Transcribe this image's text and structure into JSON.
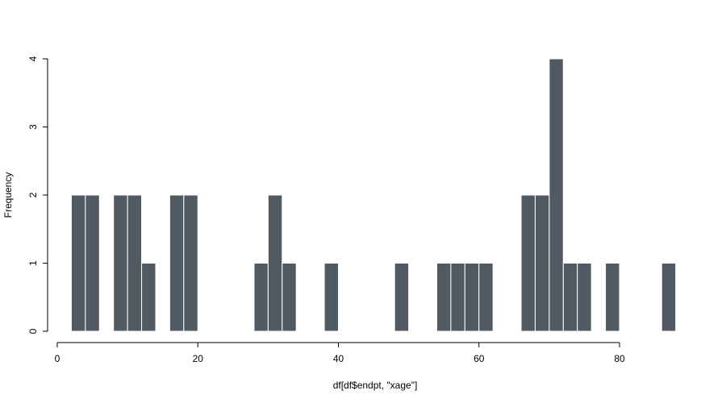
{
  "chart_data": {
    "type": "bar",
    "title": "",
    "xlabel": "df[df$endpt, \"xage\"]",
    "ylabel": "Frequency",
    "xlim": [
      0,
      80
    ],
    "ylim": [
      0,
      4
    ],
    "x_ticks": [
      "0",
      "20",
      "40",
      "60",
      "80"
    ],
    "y_ticks": [
      "0",
      "1",
      "2",
      "3",
      "4"
    ],
    "bin_width": 2,
    "bins": [
      {
        "start": 2,
        "end": 4,
        "count": 2
      },
      {
        "start": 4,
        "end": 6,
        "count": 2
      },
      {
        "start": 8,
        "end": 10,
        "count": 2
      },
      {
        "start": 10,
        "end": 12,
        "count": 2
      },
      {
        "start": 12,
        "end": 14,
        "count": 1
      },
      {
        "start": 16,
        "end": 18,
        "count": 2
      },
      {
        "start": 18,
        "end": 20,
        "count": 2
      },
      {
        "start": 28,
        "end": 30,
        "count": 1
      },
      {
        "start": 30,
        "end": 32,
        "count": 2
      },
      {
        "start": 32,
        "end": 34,
        "count": 1
      },
      {
        "start": 38,
        "end": 40,
        "count": 1
      },
      {
        "start": 48,
        "end": 50,
        "count": 1
      },
      {
        "start": 54,
        "end": 56,
        "count": 1
      },
      {
        "start": 56,
        "end": 58,
        "count": 1
      },
      {
        "start": 58,
        "end": 60,
        "count": 1
      },
      {
        "start": 60,
        "end": 62,
        "count": 1
      },
      {
        "start": 66,
        "end": 68,
        "count": 2
      },
      {
        "start": 68,
        "end": 70,
        "count": 2
      },
      {
        "start": 70,
        "end": 72,
        "count": 4
      },
      {
        "start": 72,
        "end": 74,
        "count": 1
      },
      {
        "start": 74,
        "end": 76,
        "count": 1
      },
      {
        "start": 78,
        "end": 80,
        "count": 1
      },
      {
        "start": 86,
        "end": 88,
        "count": 1
      }
    ],
    "bar_color": "#515a63",
    "bar_border_color": "#ffffff",
    "grid": false,
    "legend": "none"
  }
}
